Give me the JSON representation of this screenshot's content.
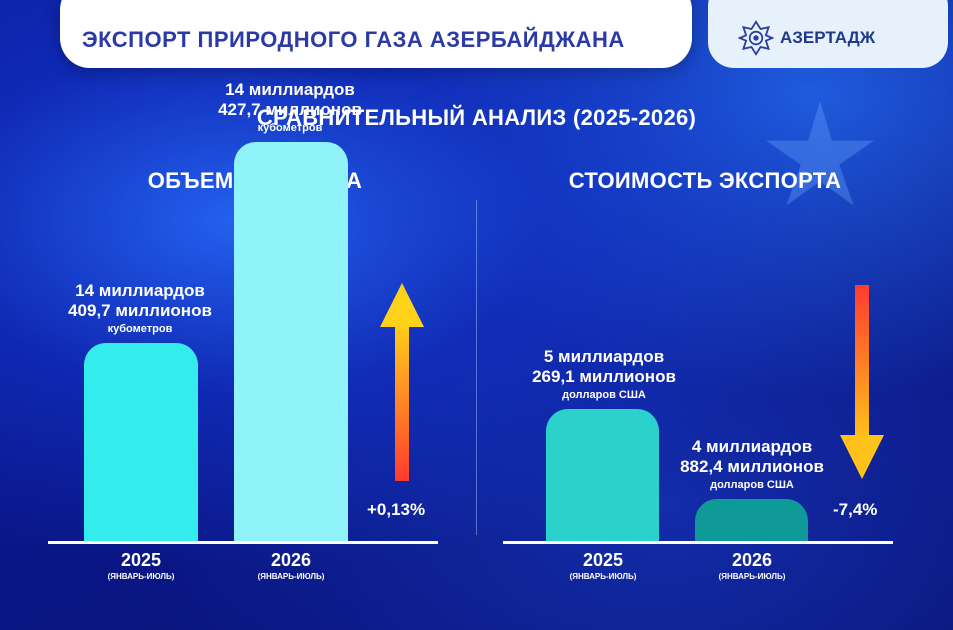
{
  "header": {
    "title": "ЭКСПОРТ ПРИРОДНОГО ГАЗА АЗЕРБАЙДЖАНА",
    "logo_text": "АЗЕРТАДЖ",
    "logo_icon": "azertac-star-icon"
  },
  "subtitle": "СРАВНИТЕЛЬНЫЙ АНАЛИЗ (2025-2026)",
  "colors": {
    "volume_2025": "#35ecec",
    "volume_2026": "#8ff3f9",
    "value_2025": "#2bd2cc",
    "value_2026": "#0f9a98",
    "arrow_up_start": "#ff3b2f",
    "arrow_up_end": "#ffd21a",
    "arrow_down_start": "#ff3b2f",
    "arrow_down_end": "#ffc21a"
  },
  "chart_data": [
    {
      "type": "bar",
      "title": "ОБЪЕМ ЭКСПОРТА",
      "categories": [
        "2025",
        "2026"
      ],
      "period_labels": [
        "(ЯНВАРЬ-ИЮЛЬ)",
        "(ЯНВАРЬ-ИЮЛЬ)"
      ],
      "values": [
        14409.7,
        14427.7
      ],
      "unit_note": "million cubic meters",
      "value_labels": [
        {
          "line1": "14 миллиардов",
          "line2": "409,7 миллионов",
          "unit": "кубометров"
        },
        {
          "line1": "14 миллиардов",
          "line2": "427,7 миллионов",
          "unit": "кубометров"
        }
      ],
      "change": "+0,13%",
      "trend": "up"
    },
    {
      "type": "bar",
      "title": "СТОИМОСТЬ ЭКСПОРТА",
      "categories": [
        "2025",
        "2026"
      ],
      "period_labels": [
        "(ЯНВАРЬ-ИЮЛЬ)",
        "(ЯНВАРЬ-ИЮЛЬ)"
      ],
      "values": [
        5269.1,
        4882.4
      ],
      "unit_note": "million US dollars",
      "value_labels": [
        {
          "line1": "5 миллиардов",
          "line2": "269,1 миллионов",
          "unit": "долларов США"
        },
        {
          "line1": "4 миллиардов",
          "line2": "882,4 миллионов",
          "unit": "долларов США"
        }
      ],
      "change": "-7,4%",
      "trend": "down"
    }
  ]
}
